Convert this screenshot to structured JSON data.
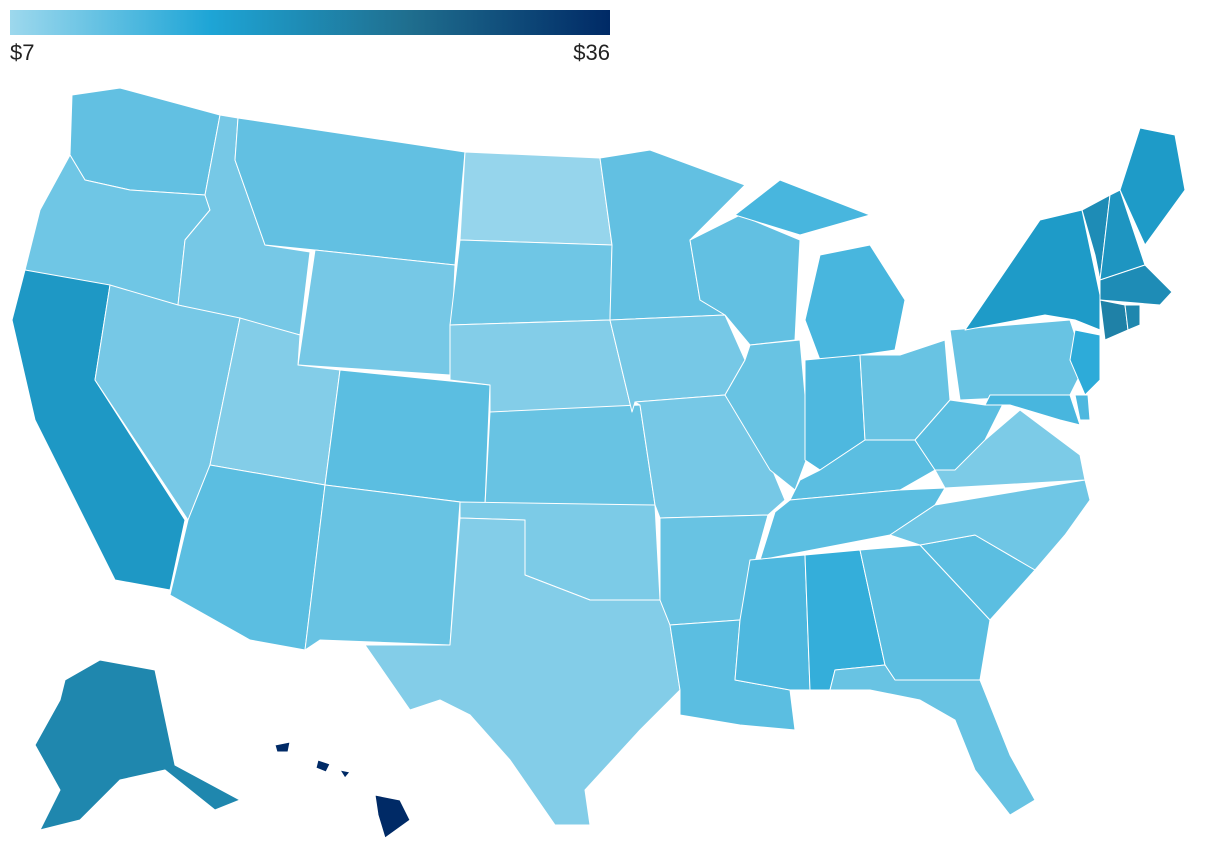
{
  "chart_data": {
    "type": "choropleth",
    "legend": {
      "min": {
        "value": 7,
        "label": "$7"
      },
      "max": {
        "value": 36,
        "label": "$36"
      }
    },
    "colors": [
      "#9dd8ed",
      "#1ea5d6",
      "#1f6e8e",
      "#002a66"
    ],
    "values": [
      11.5,
      10.5,
      19,
      10,
      10,
      11.5,
      10,
      9,
      12,
      12,
      11,
      7.5,
      10.5,
      9,
      11,
      9.5,
      9,
      11.5,
      10,
      10,
      11,
      12,
      11.5,
      11,
      13.5,
      13,
      11,
      12,
      12,
      13,
      15,
      12,
      11,
      12,
      10.5,
      9.5,
      12,
      11,
      18.5,
      21,
      19.5,
      18.5,
      21,
      23,
      22,
      15.5,
      13,
      13.5,
      22,
      36
    ]
  }
}
